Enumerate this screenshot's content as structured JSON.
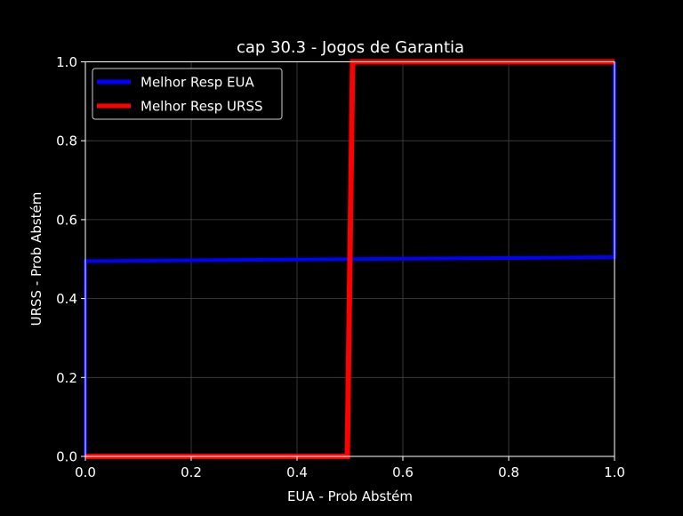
{
  "chart_data": {
    "type": "line",
    "title": "cap 30.3 - Jogos de Garantia",
    "xlabel": "EUA - Prob Abstém",
    "ylabel": "URSS - Prob Abstém",
    "xlim": [
      0.0,
      1.0
    ],
    "ylim": [
      0.0,
      1.0
    ],
    "xticks": [
      "0.0",
      "0.2",
      "0.4",
      "0.6",
      "0.8",
      "1.0"
    ],
    "yticks": [
      "0.0",
      "0.2",
      "0.4",
      "0.6",
      "0.8",
      "1.0"
    ],
    "grid": true,
    "legend_position": "upper left",
    "series": [
      {
        "name": "Melhor Resp EUA",
        "color": "#0000ff",
        "x": [
          0.0,
          0.0,
          1.0,
          1.0
        ],
        "y": [
          0.0,
          0.495,
          0.505,
          1.0
        ]
      },
      {
        "name": "Melhor Resp URSS",
        "color": "#ff0000",
        "x": [
          0.0,
          0.495,
          0.505,
          1.0
        ],
        "y": [
          0.0,
          0.0,
          1.0,
          1.0
        ]
      }
    ]
  }
}
